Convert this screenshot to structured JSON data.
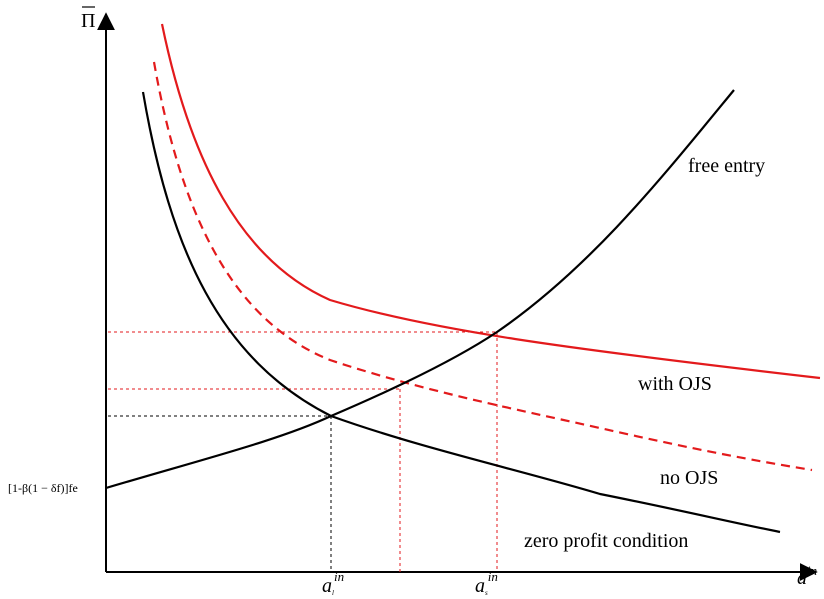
{
  "axes": {
    "y_label": "Π",
    "x_label": "a",
    "x_label_sup": "in",
    "y_intercept_label": "[1-β(1 − δf)]fe"
  },
  "curves": [
    {
      "name": "free entry",
      "label": "free entry",
      "color": "#000000",
      "style": "solid"
    },
    {
      "name": "with OJS",
      "label": "with OJS",
      "color": "#e31a1c",
      "style": "solid"
    },
    {
      "name": "no OJS",
      "label": "no OJS",
      "color": "#e31a1c",
      "style": "dashed"
    },
    {
      "name": "zero profit condition",
      "label": "zero profit condition",
      "color": "#000000",
      "style": "solid"
    }
  ],
  "x_ticks": [
    {
      "base": "a",
      "sub": "l",
      "sup": "in"
    },
    {
      "base": "a",
      "sub": "s",
      "sup": "in"
    }
  ],
  "colors": {
    "black": "#000000",
    "red": "#e31a1c"
  }
}
